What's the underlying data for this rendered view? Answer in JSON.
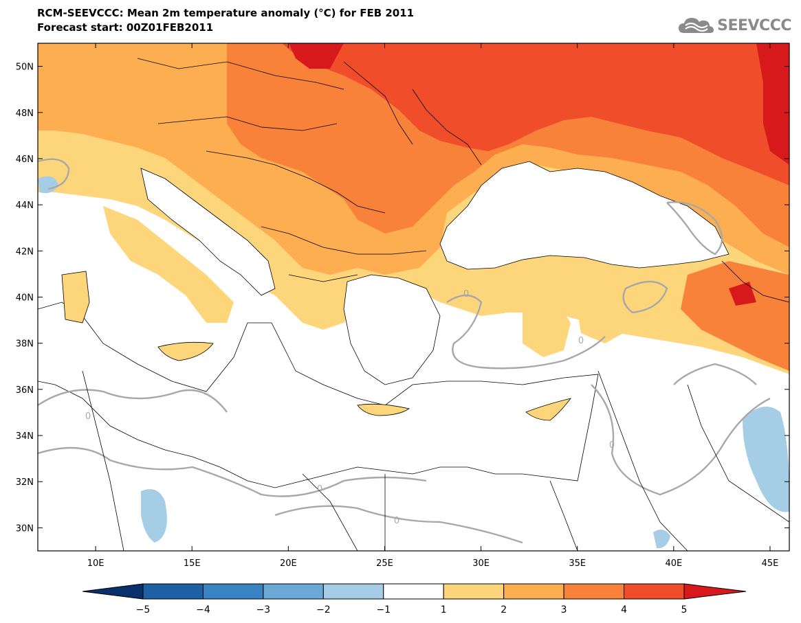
{
  "title": {
    "line1": "RCM-SEEVCCC: Mean 2m temperature anomaly (°C) for FEB 2011",
    "line2": "Forecast start: 00Z01FEB2011"
  },
  "logo": {
    "icon": "cloud-logo-icon",
    "text": "SEEVCCC"
  },
  "map": {
    "lon_range": [
      7,
      46
    ],
    "lat_range": [
      29,
      51
    ],
    "x_ticks": [
      {
        "lon": 10,
        "label": "10E"
      },
      {
        "lon": 15,
        "label": "15E"
      },
      {
        "lon": 20,
        "label": "20E"
      },
      {
        "lon": 25,
        "label": "25E"
      },
      {
        "lon": 30,
        "label": "30E"
      },
      {
        "lon": 35,
        "label": "35E"
      },
      {
        "lon": 40,
        "label": "40E"
      },
      {
        "lon": 45,
        "label": "45E"
      }
    ],
    "y_ticks": [
      {
        "lat": 30,
        "label": "30N"
      },
      {
        "lat": 32,
        "label": "32N"
      },
      {
        "lat": 34,
        "label": "34N"
      },
      {
        "lat": 36,
        "label": "36N"
      },
      {
        "lat": 38,
        "label": "38N"
      },
      {
        "lat": 40,
        "label": "40N"
      },
      {
        "lat": 42,
        "label": "42N"
      },
      {
        "lat": 44,
        "label": "44N"
      },
      {
        "lat": 46,
        "label": "46N"
      },
      {
        "lat": 48,
        "label": "48N"
      },
      {
        "lat": 50,
        "label": "50N"
      }
    ],
    "contour_label": "0"
  },
  "colorbar": {
    "labels": [
      "−5",
      "−4",
      "−3",
      "−2",
      "−1",
      "1",
      "2",
      "3",
      "4",
      "5"
    ],
    "colors": [
      "#08306b",
      "#1f5fa3",
      "#3a83c2",
      "#6aa8d6",
      "#a6cde6",
      "#ffffff",
      "#fdd57a",
      "#fcae50",
      "#f8823a",
      "#f04e2b",
      "#d7191c"
    ]
  }
}
